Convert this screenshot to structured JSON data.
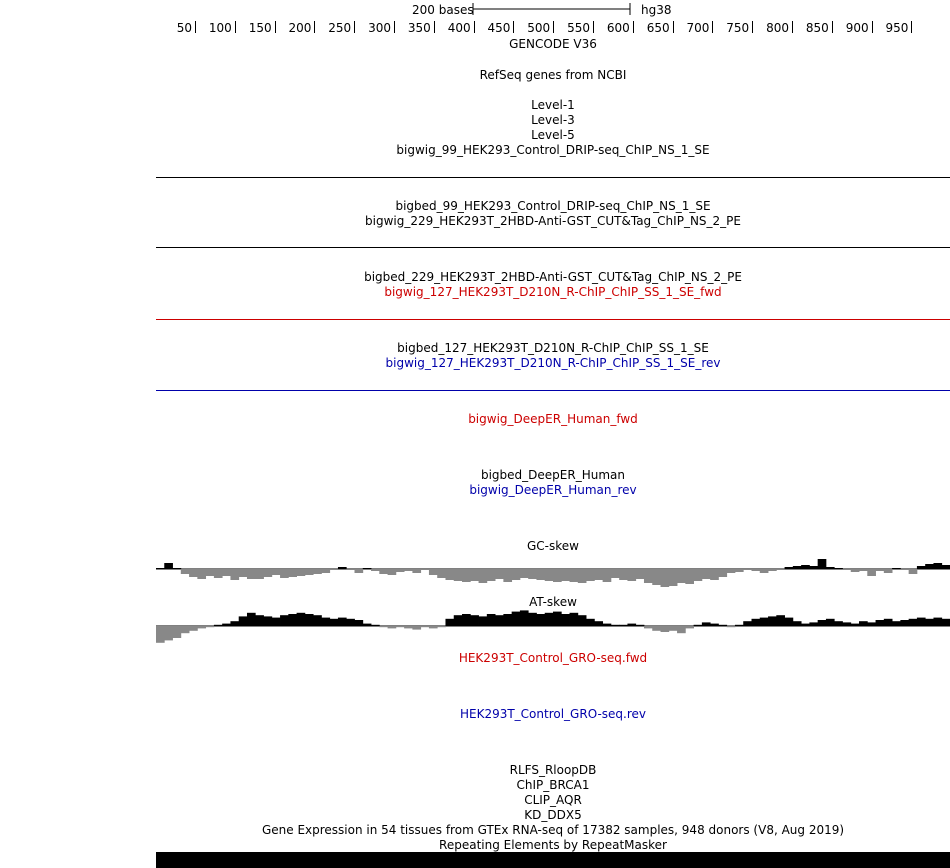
{
  "ruler": {
    "scale_label": "200 bases",
    "assembly": "hg38",
    "ticks": [
      "50",
      "100",
      "150",
      "200",
      "250",
      "300",
      "350",
      "400",
      "450",
      "500",
      "550",
      "600",
      "650",
      "700",
      "750",
      "800",
      "850",
      "900",
      "950"
    ]
  },
  "tracks": {
    "gencode": "GENCODE V36",
    "refseq": "RefSeq genes from NCBI",
    "level1": "Level-1",
    "level3": "Level-3",
    "level5": "Level-5",
    "bigwig_99": "bigwig_99_HEK293_Control_DRIP-seq_ChIP_NS_1_SE",
    "bigbed_99": "bigbed_99_HEK293_Control_DRIP-seq_ChIP_NS_1_SE",
    "bigwig_229": "bigwig_229_HEK293T_2HBD-Anti-GST_CUT&Tag_ChIP_NS_2_PE",
    "bigbed_229": "bigbed_229_HEK293T_2HBD-Anti-GST_CUT&Tag_ChIP_NS_2_PE",
    "bigwig_127_fwd": "bigwig_127_HEK293T_D210N_R-ChIP_ChIP_SS_1_SE_fwd",
    "bigbed_127": "bigbed_127_HEK293T_D210N_R-ChIP_ChIP_SS_1_SE",
    "bigwig_127_rev": "bigwig_127_HEK293T_D210N_R-ChIP_ChIP_SS_1_SE_rev",
    "deeper_fwd": "bigwig_DeepER_Human_fwd",
    "deeper_bed": "bigbed_DeepER_Human",
    "deeper_rev": "bigwig_DeepER_Human_rev",
    "gc_skew": "GC-skew",
    "at_skew": "AT-skew",
    "gro_fwd": "HEK293T_Control_GRO-seq.fwd",
    "gro_rev": "HEK293T_Control_GRO-seq.rev",
    "rlfs": "RLFS_RloopDB",
    "chip_brca1": "ChIP_BRCA1",
    "clip_aqr": "CLIP_AQR",
    "kd_ddx5": "KD_DDX5",
    "gtex": "Gene Expression in 54 tissues from GTEx RNA-seq of 17382 samples, 948 donors (V8, Aug 2019)",
    "repeatmasker": "Repeating Elements by RepeatMasker"
  },
  "colors": {
    "fwd": "#cc0000",
    "rev": "#0000aa",
    "negative_bar": "#888888",
    "positive_bar": "#000000"
  },
  "gc_skew_values": [
    0.05,
    0.3,
    0.05,
    -0.25,
    -0.4,
    -0.5,
    -0.35,
    -0.45,
    -0.35,
    -0.55,
    -0.4,
    -0.5,
    -0.5,
    -0.4,
    -0.3,
    -0.45,
    -0.4,
    -0.35,
    -0.3,
    -0.25,
    -0.2,
    -0.05,
    0.1,
    -0.05,
    -0.2,
    0.05,
    -0.1,
    -0.25,
    -0.3,
    -0.15,
    -0.1,
    -0.2,
    -0.05,
    -0.3,
    -0.45,
    -0.55,
    -0.6,
    -0.65,
    -0.6,
    -0.7,
    -0.6,
    -0.5,
    -0.65,
    -0.55,
    -0.45,
    -0.5,
    -0.55,
    -0.6,
    -0.65,
    -0.6,
    -0.65,
    -0.7,
    -0.6,
    -0.55,
    -0.65,
    -0.45,
    -0.55,
    -0.6,
    -0.5,
    -0.7,
    -0.8,
    -0.9,
    -0.85,
    -0.7,
    -0.75,
    -0.6,
    -0.5,
    -0.55,
    -0.4,
    -0.2,
    -0.15,
    -0.05,
    -0.1,
    -0.2,
    -0.1,
    -0.05,
    0.1,
    0.15,
    0.2,
    0.15,
    0.5,
    0.1,
    0.05,
    -0.05,
    -0.15,
    -0.1,
    -0.35,
    -0.1,
    -0.2,
    0.05,
    -0.05,
    -0.25,
    0.15,
    0.25,
    0.3,
    0.2
  ],
  "at_skew_values": [
    -0.7,
    -0.6,
    -0.5,
    -0.3,
    -0.2,
    -0.1,
    -0.05,
    0.05,
    0.1,
    0.2,
    0.4,
    0.55,
    0.45,
    0.4,
    0.35,
    0.45,
    0.5,
    0.55,
    0.5,
    0.45,
    0.35,
    0.3,
    0.35,
    0.3,
    0.25,
    0.1,
    0.05,
    -0.05,
    -0.1,
    -0.05,
    -0.1,
    -0.15,
    -0.05,
    -0.1,
    -0.05,
    0.3,
    0.45,
    0.5,
    0.45,
    0.4,
    0.5,
    0.45,
    0.5,
    0.6,
    0.65,
    0.55,
    0.5,
    0.55,
    0.6,
    0.5,
    0.55,
    0.45,
    0.3,
    0.2,
    0.1,
    0.05,
    0.05,
    0.1,
    0.05,
    -0.1,
    -0.2,
    -0.25,
    -0.2,
    -0.3,
    -0.1,
    0.05,
    0.15,
    0.1,
    0.05,
    -0.05,
    0.05,
    0.2,
    0.3,
    0.35,
    0.4,
    0.45,
    0.35,
    0.2,
    0.1,
    0.15,
    0.25,
    0.3,
    0.2,
    0.15,
    0.1,
    0.2,
    0.15,
    0.25,
    0.3,
    0.2,
    0.25,
    0.3,
    0.35,
    0.3,
    0.35,
    0.3
  ]
}
